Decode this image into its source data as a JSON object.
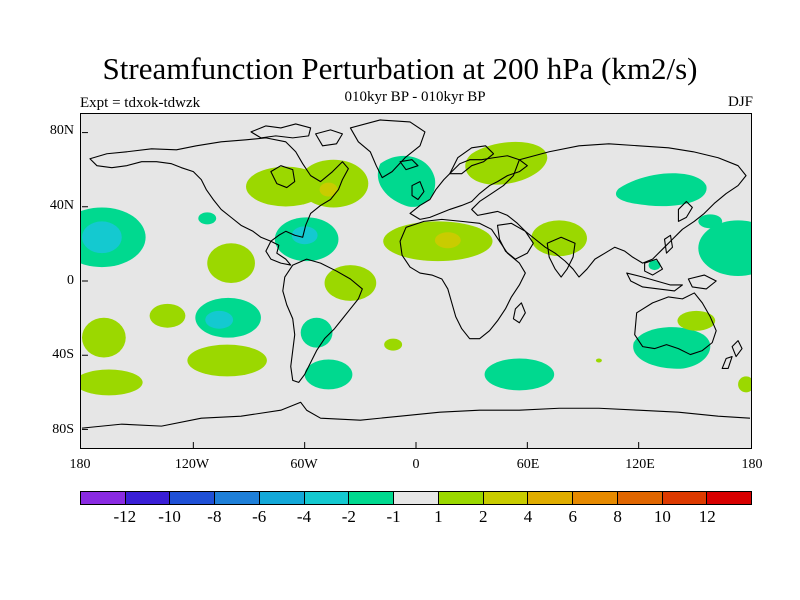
{
  "title": "Streamfunction Perturbation at 200 hPa (km2/s)",
  "subtitle": "010kyr BP - 010kyr BP",
  "left_label": "Expt = tdxok-tdwzk",
  "right_label": "DJF",
  "lat_labels": [
    "80N",
    "40N",
    "0",
    "40S",
    "80S"
  ],
  "lon_labels": [
    "180",
    "120W",
    "60W",
    "0",
    "60E",
    "120E",
    "180"
  ],
  "colorbar": {
    "colors": [
      "#8a2be2",
      "#3a1fd6",
      "#1f50d6",
      "#1e7fd8",
      "#13a8d8",
      "#14c9d0",
      "#00d98f",
      "#e6e6e6",
      "#9bd800",
      "#c9cc00",
      "#e0ad00",
      "#e68a00",
      "#e06600",
      "#dd3a00",
      "#d80000"
    ],
    "labels": [
      "-12",
      "-10",
      "-8",
      "-6",
      "-4",
      "-2",
      "-1",
      "1",
      "2",
      "4",
      "6",
      "8",
      "10",
      "12"
    ]
  },
  "chart_data": {
    "type": "heatmap",
    "title": "Streamfunction Perturbation at 200 hPa (km2/s)",
    "subtitle": "010kyr BP - 010kyr BP",
    "projection": "cylindrical equidistant",
    "lon_range": [
      -180,
      180
    ],
    "lat_range": [
      -90,
      90
    ],
    "contour_levels": [
      -12,
      -10,
      -8,
      -6,
      -4,
      -2,
      -1,
      1,
      2,
      4,
      6,
      8,
      10,
      12
    ],
    "anomaly_regions": [
      {
        "lon": -168,
        "lat": 21,
        "value": -3
      },
      {
        "lon": -88,
        "lat": 12,
        "value": 1.5
      },
      {
        "lon": -65,
        "lat": 22,
        "value": -2.5
      },
      {
        "lon": -82,
        "lat": 51,
        "value": 2
      },
      {
        "lon": -58,
        "lat": 50,
        "value": 2.5
      },
      {
        "lon": -28,
        "lat": 59,
        "value": -1.5
      },
      {
        "lon": 37,
        "lat": 68,
        "value": 1.5
      },
      {
        "lon": -35,
        "lat": 2,
        "value": 1.5
      },
      {
        "lon": 18,
        "lat": 20,
        "value": 2.5
      },
      {
        "lon": 80,
        "lat": 20,
        "value": 1.5
      },
      {
        "lon": 125,
        "lat": 48,
        "value": -1.5
      },
      {
        "lon": 170,
        "lat": 18,
        "value": -1.5
      },
      {
        "lon": -112,
        "lat": -21,
        "value": -2.5
      },
      {
        "lon": -138,
        "lat": -21,
        "value": 1.5
      },
      {
        "lon": -168,
        "lat": -32,
        "value": 1.5
      },
      {
        "lon": -160,
        "lat": -56,
        "value": 1.5
      },
      {
        "lon": -95,
        "lat": -44,
        "value": 1.5
      },
      {
        "lon": -50,
        "lat": -27,
        "value": -1.5
      },
      {
        "lon": -47,
        "lat": -52,
        "value": -1.5
      },
      {
        "lon": 55,
        "lat": -50,
        "value": -1.5
      },
      {
        "lon": 135,
        "lat": -40,
        "value": -1.5
      },
      {
        "lon": 145,
        "lat": -22,
        "value": 1.5
      },
      {
        "lon": -10,
        "lat": -35,
        "value": 1.5
      }
    ]
  }
}
